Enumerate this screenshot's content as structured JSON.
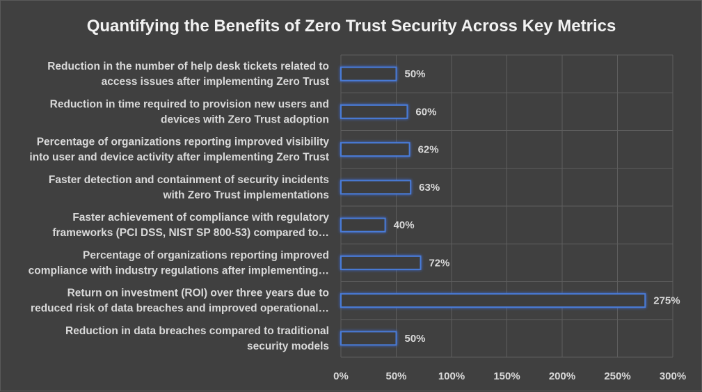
{
  "colors": {
    "background": "#404040",
    "bar_stroke": "#4a7bd8",
    "bar_glow": "#3f6fe0",
    "text": "#d9d9d9",
    "grid": "#5e5e5e"
  },
  "chart_data": {
    "type": "bar",
    "orientation": "horizontal",
    "title": "Quantifying the Benefits of Zero Trust Security Across Key Metrics",
    "xlabel": "",
    "ylabel": "",
    "xlim": [
      0,
      300
    ],
    "x_ticks": [
      0,
      50,
      100,
      150,
      200,
      250,
      300
    ],
    "x_tick_labels": [
      "0%",
      "50%",
      "100%",
      "150%",
      "200%",
      "250%",
      "300%"
    ],
    "grid": true,
    "legend": "none",
    "categories": [
      [
        "Reduction in the number of help desk tickets related to",
        "access issues after implementing Zero Trust"
      ],
      [
        "Reduction in time required to provision new users and",
        "devices with Zero Trust adoption"
      ],
      [
        "Percentage of organizations reporting improved visibility",
        "into user and device activity after implementing Zero Trust"
      ],
      [
        "Faster detection and containment of security incidents",
        "with Zero Trust implementations"
      ],
      [
        "Faster achievement of compliance with regulatory",
        "frameworks (PCI DSS, NIST SP 800-53) compared to…"
      ],
      [
        "Percentage of organizations reporting improved",
        "compliance with industry regulations after implementing…"
      ],
      [
        "Return on investment (ROI) over three years due to",
        "reduced risk of data breaches and improved operational…"
      ],
      [
        "Reduction in data breaches compared to traditional",
        "security models"
      ]
    ],
    "values": [
      50,
      60,
      62,
      63,
      40,
      72,
      275,
      50
    ],
    "data_labels": [
      "50%",
      "60%",
      "62%",
      "63%",
      "40%",
      "72%",
      "275%",
      "50%"
    ]
  }
}
